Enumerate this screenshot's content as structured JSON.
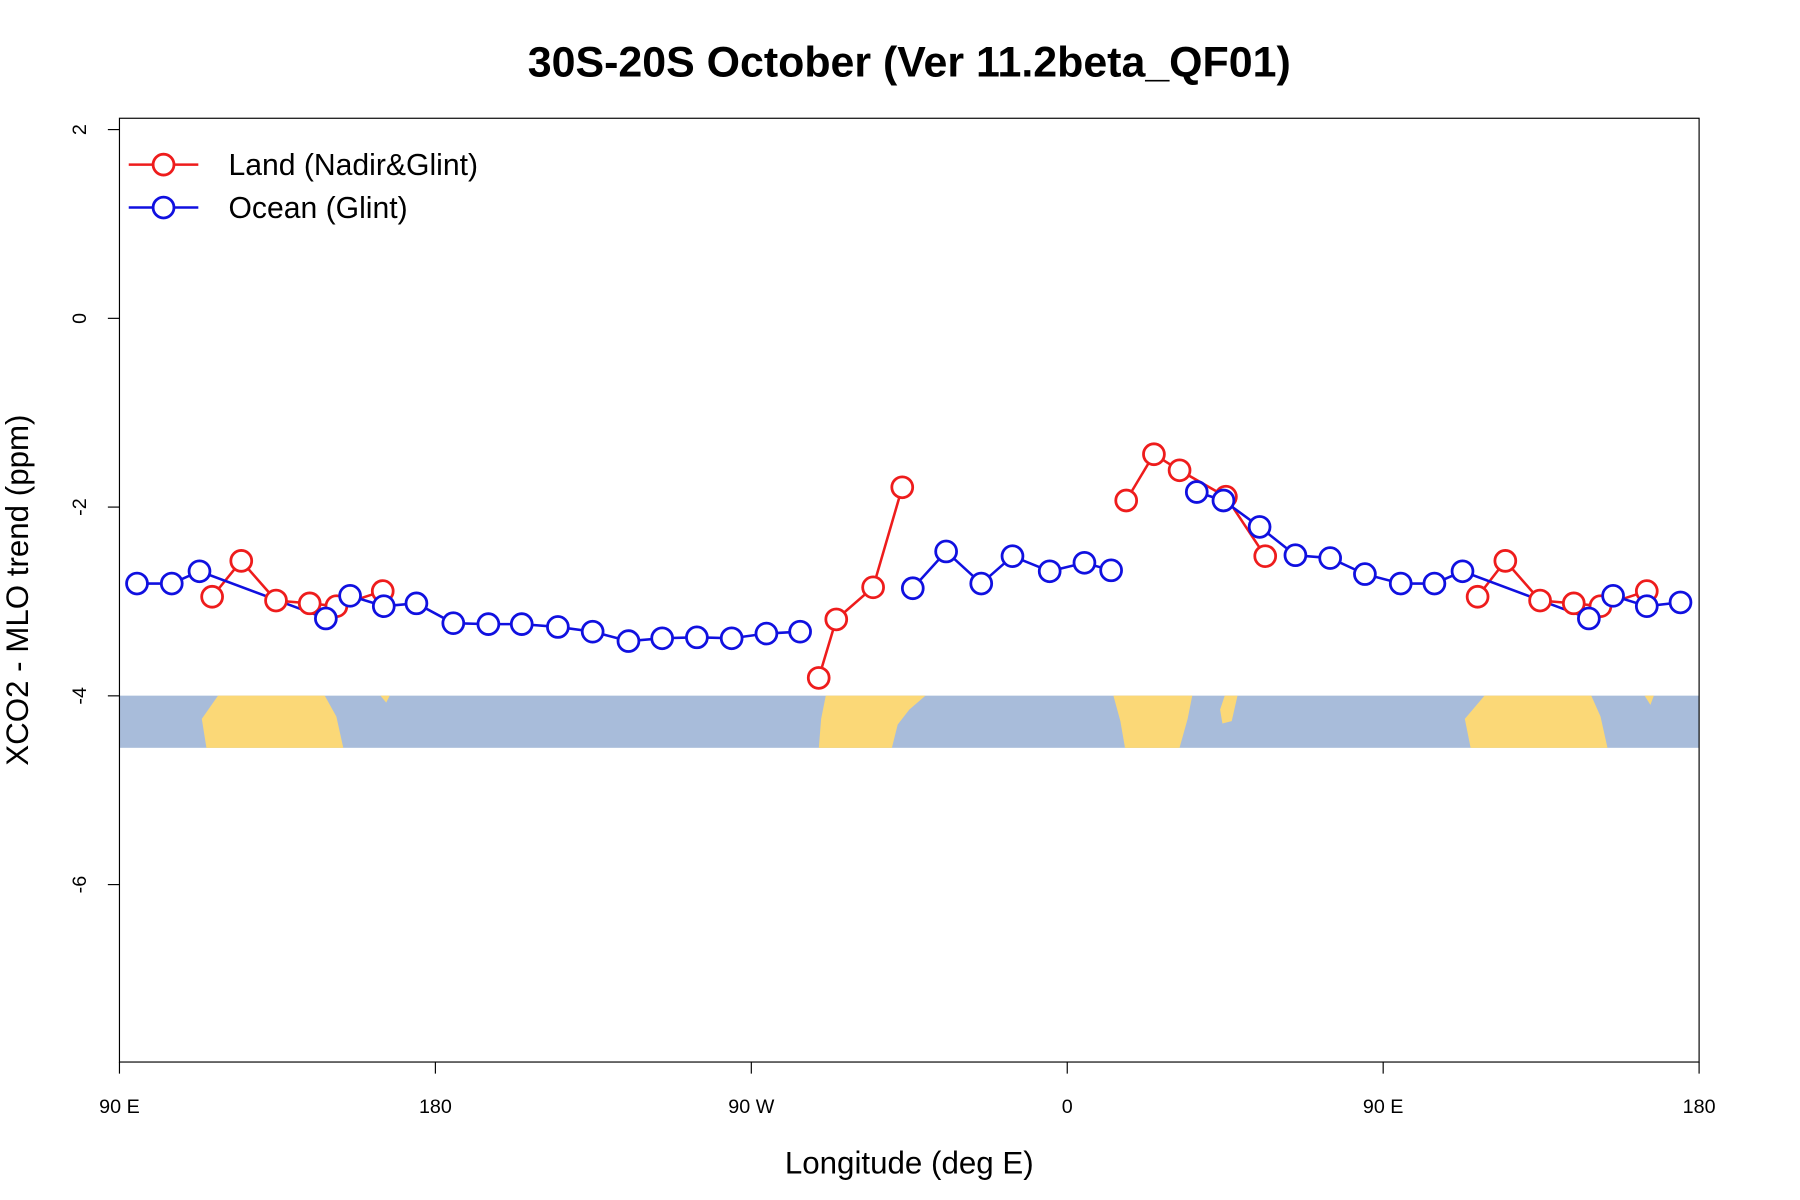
{
  "chart_data": {
    "type": "line",
    "title": "30S-20S October (Ver 11.2beta_QF01)",
    "x_label": "Longitude (deg E)",
    "y_label": "XCO2 - MLO trend (ppm)",
    "xlim": [
      90,
      540
    ],
    "xticks": [
      {
        "value": 90,
        "label": "90 E"
      },
      180,
      {
        "value": 270,
        "label": "90 W"
      },
      {
        "value": 360,
        "label": "0"
      },
      {
        "value": 450,
        "label": "90 E"
      },
      {
        "value": 540,
        "label": "180"
      }
    ],
    "ylim": [
      -7.88,
      2.12
    ],
    "yticks": [
      -6,
      -4,
      -2,
      0,
      2
    ],
    "legend": "top-left",
    "series": [
      {
        "name": "Land (Nadir&Glint)",
        "color": "#ee1c1c",
        "x": [
          116.4,
          124.7,
          134.6,
          144.2,
          151.8,
          165.0,
          null,
          289.2,
          294.2,
          304.7,
          313.0,
          null,
          376.8,
          384.7,
          392.0,
          405.2,
          416.4,
          null,
          476.9,
          484.8,
          494.7,
          504.3,
          511.9,
          525.1
        ],
        "values": [
          -2.95,
          -2.57,
          -2.99,
          -3.02,
          -3.05,
          -2.89,
          null,
          -3.81,
          -3.19,
          -2.85,
          -1.79,
          null,
          -1.93,
          -1.44,
          -1.61,
          -1.89,
          -2.52,
          null,
          -2.95,
          -2.57,
          -2.99,
          -3.02,
          -3.05,
          -2.89
        ]
      },
      {
        "name": "Ocean (Glint)",
        "color": "#1010e0",
        "x": [
          95.0,
          104.9,
          112.8,
          148.8,
          155.7,
          165.3,
          174.6,
          185.1,
          195.1,
          204.6,
          214.9,
          224.8,
          235.0,
          244.6,
          254.5,
          264.4,
          274.3,
          283.9,
          null,
          316.0,
          325.5,
          335.5,
          344.4,
          355.0,
          364.9,
          372.5,
          null,
          396.9,
          404.5,
          414.8,
          425.0,
          434.9,
          444.8,
          455.0,
          464.6,
          472.6,
          508.6,
          515.5,
          525.1,
          534.7
        ],
        "values": [
          -2.81,
          -2.81,
          -2.68,
          -3.18,
          -2.94,
          -3.05,
          -3.02,
          -3.23,
          -3.24,
          -3.24,
          -3.27,
          -3.32,
          -3.42,
          -3.39,
          -3.38,
          -3.39,
          -3.34,
          -3.32,
          null,
          -2.86,
          -2.47,
          -2.81,
          -2.52,
          -2.68,
          -2.59,
          -2.67,
          null,
          -1.84,
          -1.93,
          -2.21,
          -2.51,
          -2.54,
          -2.71,
          -2.81,
          -2.81,
          -2.68,
          -3.18,
          -2.94,
          -3.05,
          -3.01
        ]
      }
    ]
  }
}
